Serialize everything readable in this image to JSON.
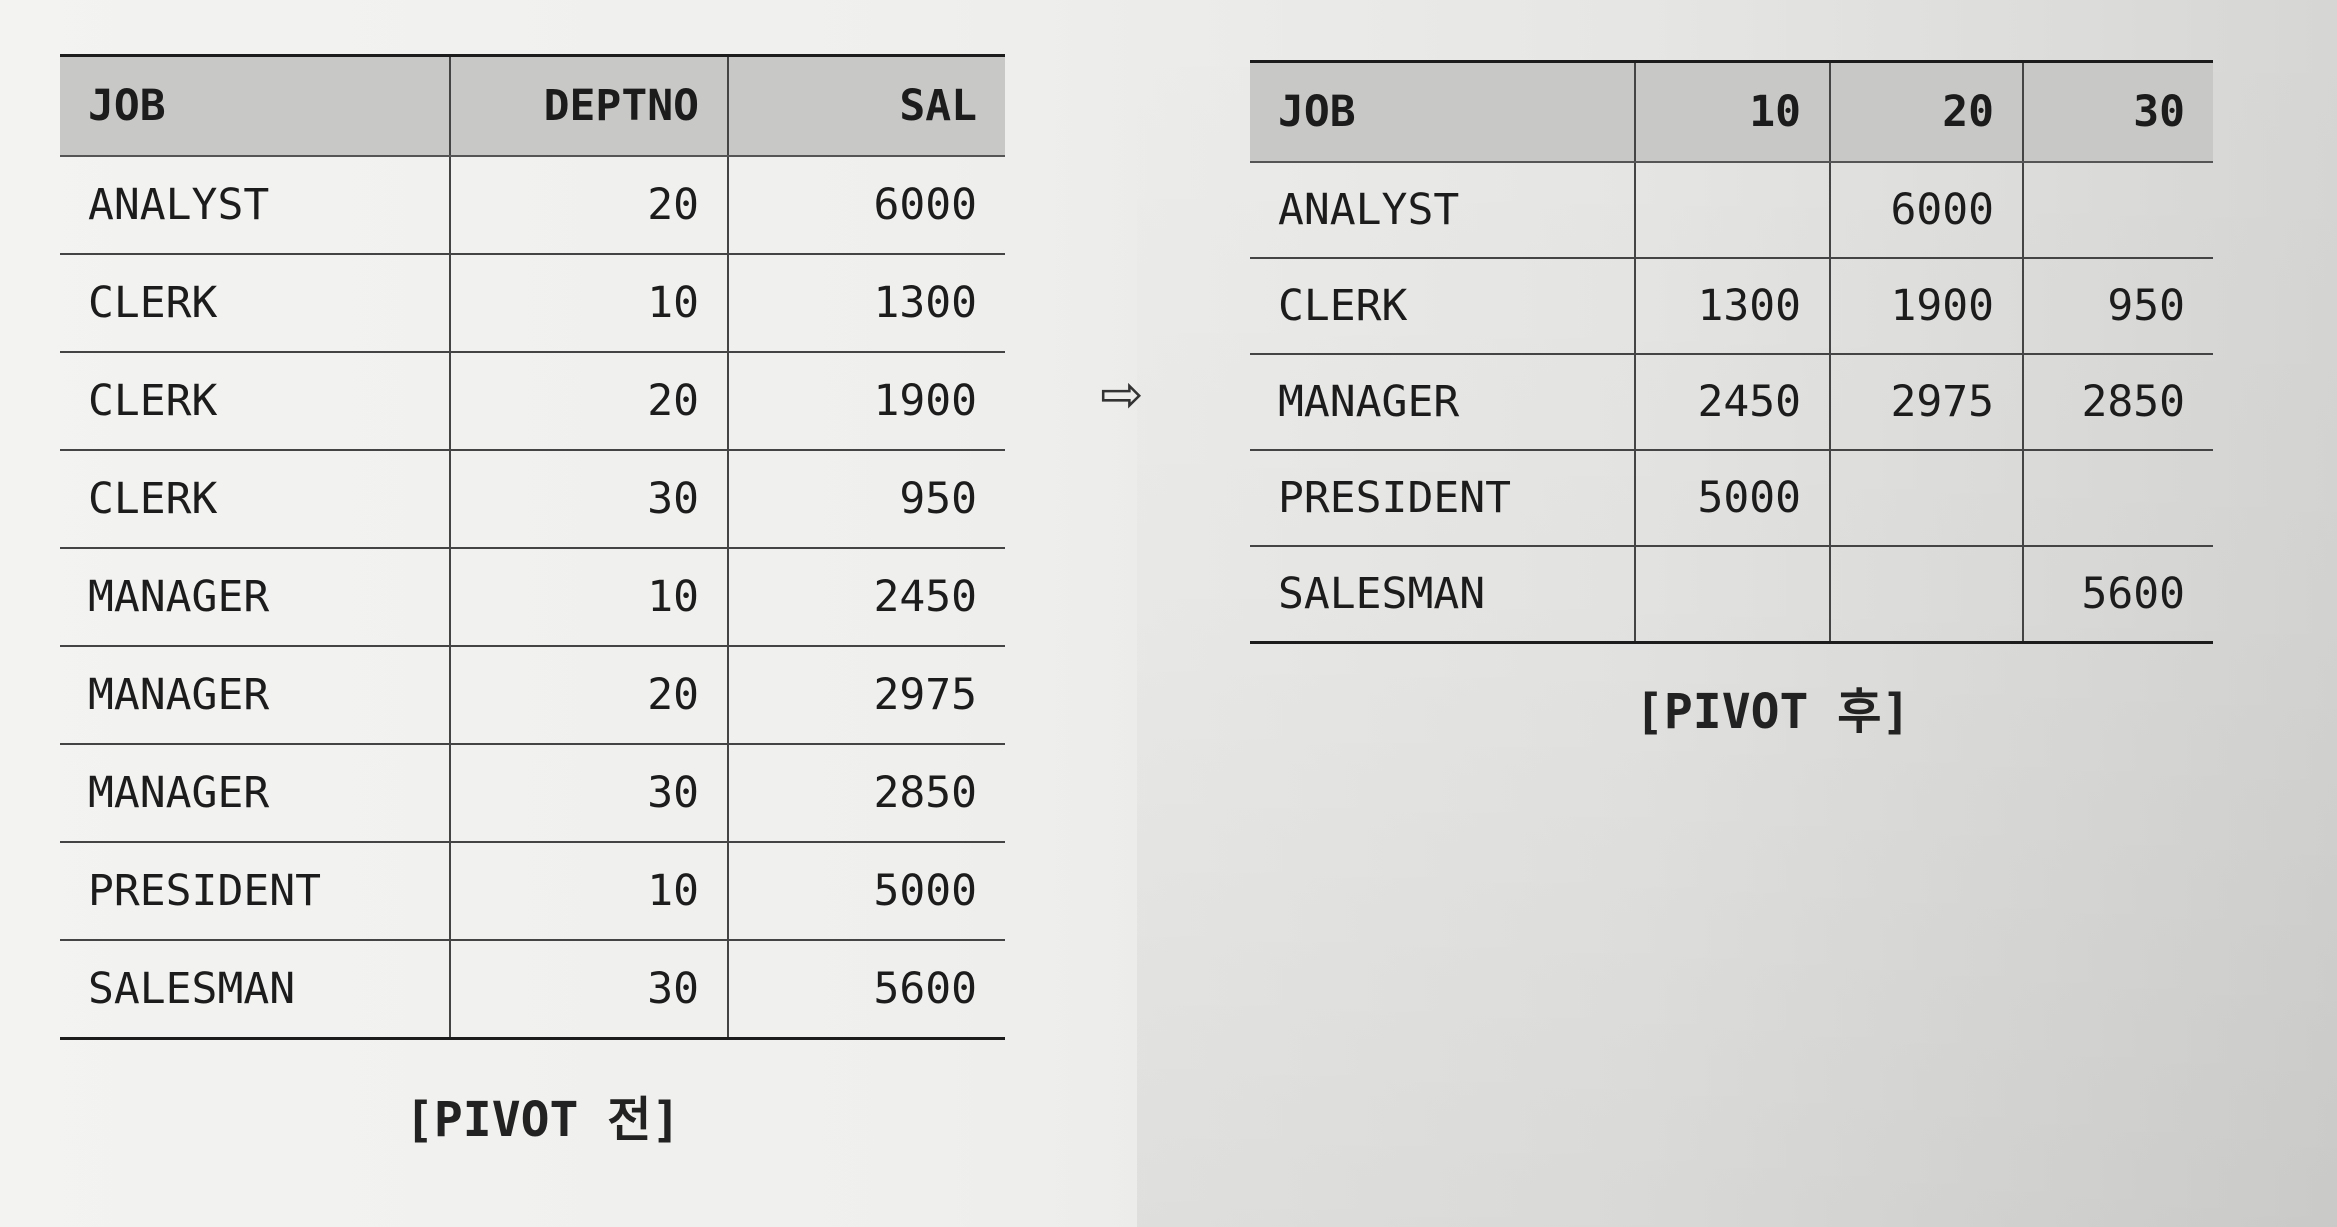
{
  "before": {
    "headers": [
      "JOB",
      "DEPTNO",
      "SAL"
    ],
    "rows": [
      [
        "ANALYST",
        "20",
        "6000"
      ],
      [
        "CLERK",
        "10",
        "1300"
      ],
      [
        "CLERK",
        "20",
        "1900"
      ],
      [
        "CLERK",
        "30",
        "950"
      ],
      [
        "MANAGER",
        "10",
        "2450"
      ],
      [
        "MANAGER",
        "20",
        "2975"
      ],
      [
        "MANAGER",
        "30",
        "2850"
      ],
      [
        "PRESIDENT",
        "10",
        "5000"
      ],
      [
        "SALESMAN",
        "30",
        "5600"
      ]
    ],
    "caption": "[PIVOT 전]"
  },
  "arrow": "⇨",
  "after": {
    "headers": [
      "JOB",
      "10",
      "20",
      "30"
    ],
    "rows": [
      [
        "ANALYST",
        "",
        "6000",
        ""
      ],
      [
        "CLERK",
        "1300",
        "1900",
        "950"
      ],
      [
        "MANAGER",
        "2450",
        "2975",
        "2850"
      ],
      [
        "PRESIDENT",
        "5000",
        "",
        ""
      ],
      [
        "SALESMAN",
        "",
        "",
        "5600"
      ]
    ],
    "caption": "[PIVOT 후]"
  }
}
